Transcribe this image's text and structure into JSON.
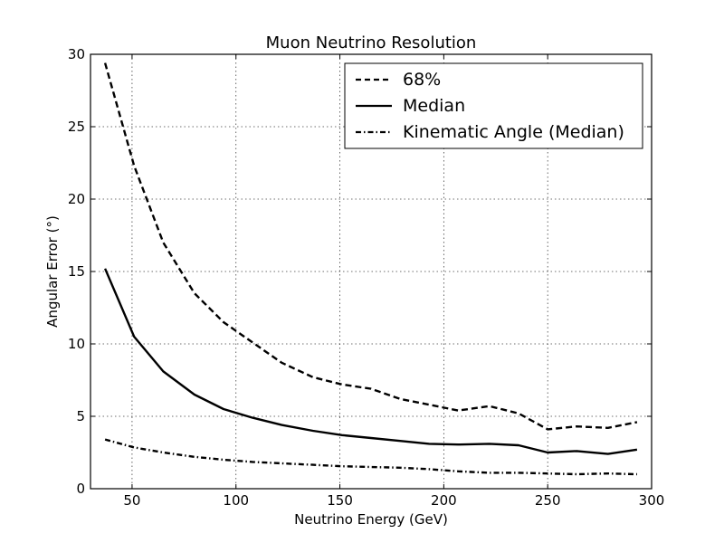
{
  "chart_data": {
    "type": "line",
    "title": "Muon Neutrino Resolution",
    "xlabel": "Neutrino Energy (GeV)",
    "ylabel": "Angular Error (°)",
    "xlim": [
      30,
      300
    ],
    "ylim": [
      0,
      30
    ],
    "xticks": [
      50,
      100,
      150,
      200,
      250,
      300
    ],
    "yticks": [
      0,
      5,
      10,
      15,
      20,
      25,
      30
    ],
    "grid": true,
    "legend_position": "top-right",
    "series": [
      {
        "name": "68%",
        "style": "dashed",
        "color": "#000000",
        "points": [
          [
            37,
            29.4
          ],
          [
            51,
            22.3
          ],
          [
            65,
            17.0
          ],
          [
            80,
            13.5
          ],
          [
            94,
            11.5
          ],
          [
            108,
            10.1
          ],
          [
            122,
            8.7
          ],
          [
            137,
            7.7
          ],
          [
            151,
            7.2
          ],
          [
            165,
            6.9
          ],
          [
            179,
            6.2
          ],
          [
            193,
            5.8
          ],
          [
            207,
            5.4
          ],
          [
            222,
            5.7
          ],
          [
            236,
            5.2
          ],
          [
            250,
            4.1
          ],
          [
            264,
            4.3
          ],
          [
            279,
            4.2
          ],
          [
            293,
            4.6
          ]
        ]
      },
      {
        "name": "Median",
        "style": "solid",
        "color": "#000000",
        "points": [
          [
            37,
            15.2
          ],
          [
            51,
            10.5
          ],
          [
            65,
            8.1
          ],
          [
            80,
            6.5
          ],
          [
            94,
            5.5
          ],
          [
            108,
            4.9
          ],
          [
            122,
            4.4
          ],
          [
            137,
            4.0
          ],
          [
            151,
            3.7
          ],
          [
            165,
            3.5
          ],
          [
            179,
            3.3
          ],
          [
            193,
            3.1
          ],
          [
            207,
            3.05
          ],
          [
            222,
            3.1
          ],
          [
            236,
            3.0
          ],
          [
            250,
            2.5
          ],
          [
            264,
            2.6
          ],
          [
            279,
            2.4
          ],
          [
            293,
            2.7
          ]
        ]
      },
      {
        "name": "Kinematic Angle (Median)",
        "style": "dashdot",
        "color": "#000000",
        "points": [
          [
            37,
            3.4
          ],
          [
            51,
            2.85
          ],
          [
            65,
            2.5
          ],
          [
            80,
            2.2
          ],
          [
            94,
            2.0
          ],
          [
            108,
            1.85
          ],
          [
            122,
            1.75
          ],
          [
            137,
            1.65
          ],
          [
            151,
            1.55
          ],
          [
            165,
            1.5
          ],
          [
            179,
            1.45
          ],
          [
            193,
            1.35
          ],
          [
            207,
            1.2
          ],
          [
            222,
            1.1
          ],
          [
            236,
            1.1
          ],
          [
            250,
            1.05
          ],
          [
            264,
            1.0
          ],
          [
            279,
            1.05
          ],
          [
            293,
            1.0
          ]
        ]
      }
    ]
  }
}
